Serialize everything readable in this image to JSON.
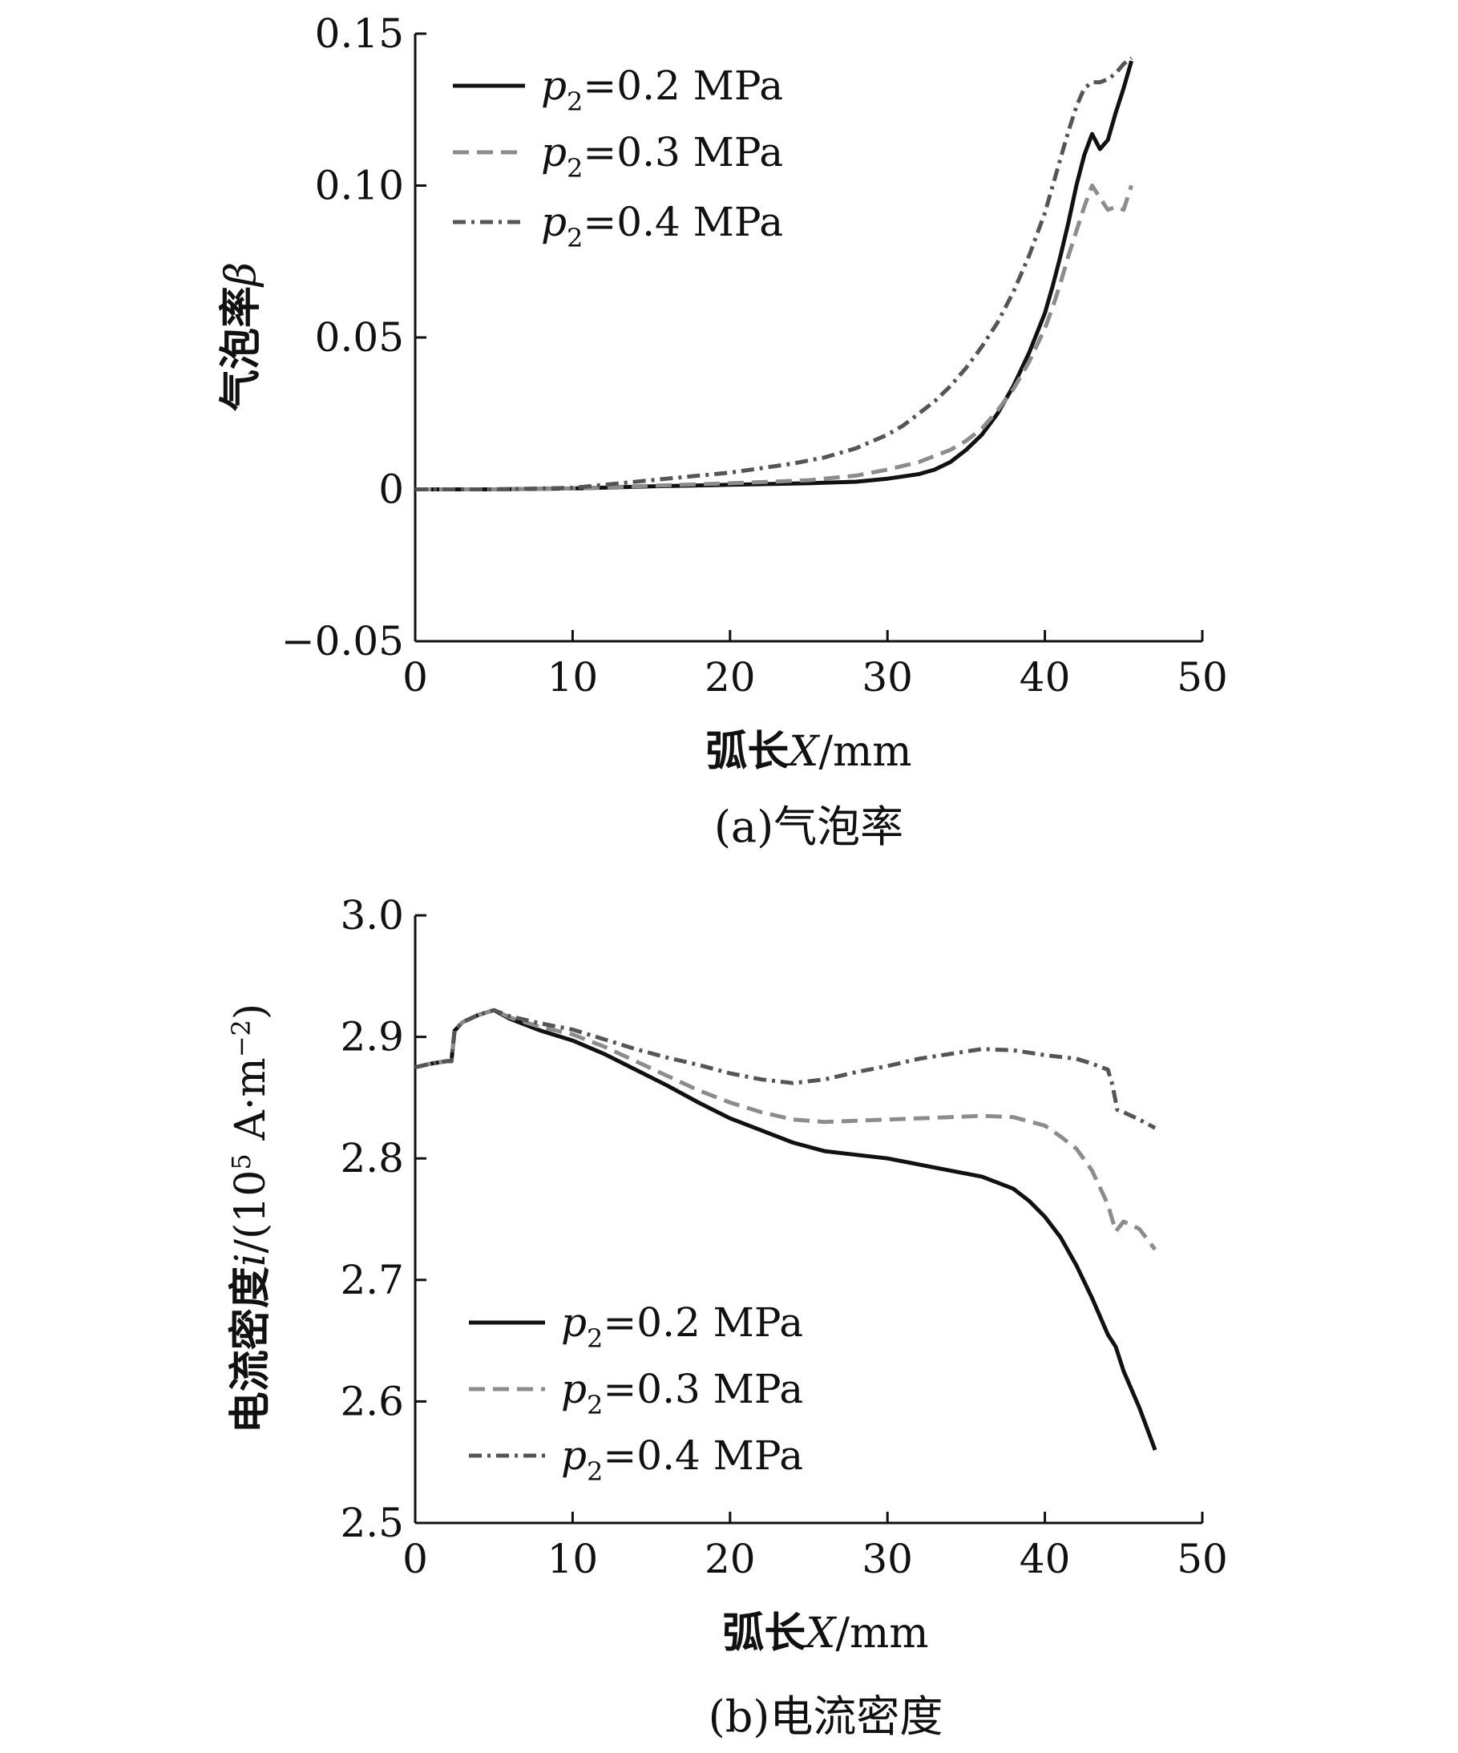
{
  "chart_data": [
    {
      "type": "line",
      "caption": "(a)气泡率",
      "xlabel": "弧长X/mm",
      "ylabel": "气泡率β",
      "xlim": [
        0,
        50
      ],
      "ylim": [
        -0.05,
        0.15
      ],
      "xticks": [
        "0",
        "10",
        "20",
        "30",
        "40",
        "50"
      ],
      "yticks": [
        "−0.05",
        "0",
        "0.05",
        "0.10",
        "0.15"
      ],
      "legend_position": "top-left",
      "series": [
        {
          "name": "p2=0.2 MPa",
          "style": "solid",
          "color": "#111111",
          "x": [
            0,
            5,
            10,
            15,
            20,
            25,
            28,
            30,
            32,
            33,
            34,
            35,
            36,
            37,
            38,
            39,
            40,
            40.5,
            41,
            41.5,
            42,
            42.5,
            43,
            43.5,
            44,
            44.5,
            45,
            45.5
          ],
          "y": [
            0,
            0,
            0.0003,
            0.001,
            0.0015,
            0.002,
            0.0025,
            0.0035,
            0.005,
            0.0065,
            0.009,
            0.013,
            0.018,
            0.025,
            0.034,
            0.045,
            0.058,
            0.067,
            0.077,
            0.088,
            0.1,
            0.11,
            0.117,
            0.112,
            0.115,
            0.124,
            0.132,
            0.141
          ]
        },
        {
          "name": "p2=0.3 MPa",
          "style": "dashed",
          "color": "#8c8c8c",
          "x": [
            0,
            5,
            10,
            15,
            20,
            25,
            28,
            30,
            32,
            34,
            35,
            36,
            37,
            38,
            39,
            40,
            40.5,
            41,
            41.5,
            42,
            42.5,
            43,
            43.5,
            44,
            44.5,
            45,
            45.5
          ],
          "y": [
            0,
            0,
            0.0003,
            0.0012,
            0.002,
            0.003,
            0.0045,
            0.0065,
            0.009,
            0.013,
            0.016,
            0.02,
            0.026,
            0.033,
            0.042,
            0.053,
            0.06,
            0.068,
            0.077,
            0.085,
            0.093,
            0.1,
            0.096,
            0.092,
            0.093,
            0.092,
            0.1
          ]
        },
        {
          "name": "p2=0.4 MPa",
          "style": "dashdot",
          "color": "#555555",
          "x": [
            0,
            5,
            10,
            12,
            15,
            18,
            20,
            22,
            24,
            26,
            28,
            30,
            31,
            32,
            33,
            34,
            35,
            36,
            37,
            38,
            39,
            40,
            40.5,
            41,
            41.5,
            42,
            42.5,
            43,
            43.5,
            44,
            44.5,
            45,
            45.5
          ],
          "y": [
            0,
            0,
            0.0005,
            0.0015,
            0.003,
            0.0045,
            0.0055,
            0.007,
            0.0085,
            0.0105,
            0.0135,
            0.018,
            0.021,
            0.025,
            0.029,
            0.034,
            0.04,
            0.047,
            0.055,
            0.065,
            0.077,
            0.091,
            0.1,
            0.109,
            0.118,
            0.126,
            0.132,
            0.134,
            0.134,
            0.135,
            0.137,
            0.14,
            0.142
          ]
        }
      ]
    },
    {
      "type": "line",
      "caption": "(b)电流密度",
      "xlabel": "弧长X/mm",
      "ylabel": "电流密度i/(10⁵ A·m⁻²)",
      "xlim": [
        0,
        50
      ],
      "ylim": [
        2.5,
        3.0
      ],
      "xticks": [
        "0",
        "10",
        "20",
        "30",
        "40",
        "50"
      ],
      "yticks": [
        "2.5",
        "2.6",
        "2.7",
        "2.8",
        "2.9",
        "3.0"
      ],
      "legend_position": "bottom-left",
      "series": [
        {
          "name": "p2=0.2 MPa",
          "style": "solid",
          "color": "#111111",
          "x": [
            0,
            1,
            2,
            2.3,
            2.5,
            3,
            4,
            5,
            6,
            8,
            10,
            12,
            14,
            16,
            18,
            20,
            22,
            24,
            26,
            28,
            30,
            32,
            34,
            36,
            38,
            39,
            40,
            41,
            42,
            43,
            44,
            44.5,
            45,
            46,
            47
          ],
          "y": [
            2.875,
            2.878,
            2.88,
            2.88,
            2.905,
            2.912,
            2.918,
            2.922,
            2.915,
            2.905,
            2.897,
            2.886,
            2.873,
            2.86,
            2.846,
            2.833,
            2.823,
            2.813,
            2.806,
            2.803,
            2.8,
            2.795,
            2.79,
            2.785,
            2.775,
            2.765,
            2.752,
            2.735,
            2.712,
            2.685,
            2.655,
            2.645,
            2.625,
            2.595,
            2.56
          ]
        },
        {
          "name": "p2=0.3 MPa",
          "style": "dashed",
          "color": "#8c8c8c",
          "x": [
            0,
            1,
            2,
            2.3,
            2.5,
            3,
            4,
            5,
            6,
            8,
            10,
            12,
            14,
            16,
            18,
            20,
            22,
            24,
            26,
            28,
            30,
            32,
            34,
            36,
            38,
            40,
            41,
            42,
            43,
            44,
            44.5,
            45,
            46,
            47
          ],
          "y": [
            2.875,
            2.878,
            2.88,
            2.88,
            2.905,
            2.912,
            2.918,
            2.922,
            2.916,
            2.908,
            2.902,
            2.892,
            2.88,
            2.868,
            2.856,
            2.846,
            2.838,
            2.832,
            2.83,
            2.831,
            2.832,
            2.833,
            2.834,
            2.835,
            2.834,
            2.827,
            2.818,
            2.808,
            2.79,
            2.762,
            2.74,
            2.748,
            2.742,
            2.725
          ]
        },
        {
          "name": "p2=0.4 MPa",
          "style": "dashdot",
          "color": "#555555",
          "x": [
            0,
            1,
            2,
            2.3,
            2.5,
            3,
            4,
            5,
            6,
            8,
            10,
            12,
            14,
            16,
            18,
            20,
            22,
            24,
            26,
            28,
            30,
            32,
            34,
            36,
            38,
            40,
            42,
            43,
            44,
            44.3,
            44.6,
            45,
            46,
            47
          ],
          "y": [
            2.875,
            2.878,
            2.88,
            2.88,
            2.905,
            2.912,
            2.918,
            2.922,
            2.917,
            2.911,
            2.906,
            2.898,
            2.89,
            2.883,
            2.877,
            2.87,
            2.865,
            2.862,
            2.865,
            2.871,
            2.876,
            2.882,
            2.886,
            2.89,
            2.889,
            2.885,
            2.882,
            2.878,
            2.873,
            2.86,
            2.84,
            2.838,
            2.832,
            2.825
          ]
        }
      ]
    }
  ]
}
